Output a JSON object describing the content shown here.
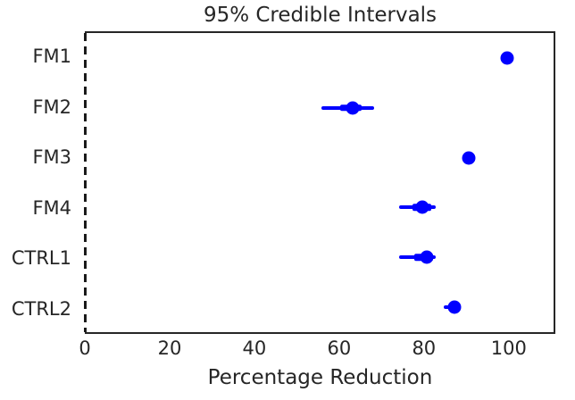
{
  "chart_data": {
    "type": "scatter",
    "title": "95% Credible Intervals",
    "xlabel": "Percentage Reduction",
    "categories": [
      "FM1",
      "FM2",
      "FM3",
      "FM4",
      "CTRL1",
      "CTRL2"
    ],
    "points": [
      100,
      63.5,
      91,
      80,
      81,
      87.5
    ],
    "interval_95": [
      [
        99,
        100.7
      ],
      [
        56,
        68.5
      ],
      [
        90,
        92
      ],
      [
        74.5,
        83
      ],
      [
        74.5,
        83
      ],
      [
        85,
        89
      ]
    ],
    "interval_50": [
      [
        99.5,
        100.5
      ],
      [
        60.5,
        65.5
      ],
      [
        90.5,
        91.5
      ],
      [
        77.5,
        82
      ],
      [
        78,
        82.5
      ],
      [
        86.5,
        88.5
      ]
    ],
    "x_ticks": [
      0,
      20,
      40,
      60,
      80,
      100
    ],
    "xlim": [
      0,
      111
    ],
    "reference_line_x": 0,
    "grid": false,
    "legend": false,
    "colors": {
      "marker": "#0000ff",
      "interval": "#0000ff",
      "text": "#262626",
      "spine": "#262626",
      "reference_line": "#1a1a1a",
      "background": "#ffffff"
    }
  }
}
